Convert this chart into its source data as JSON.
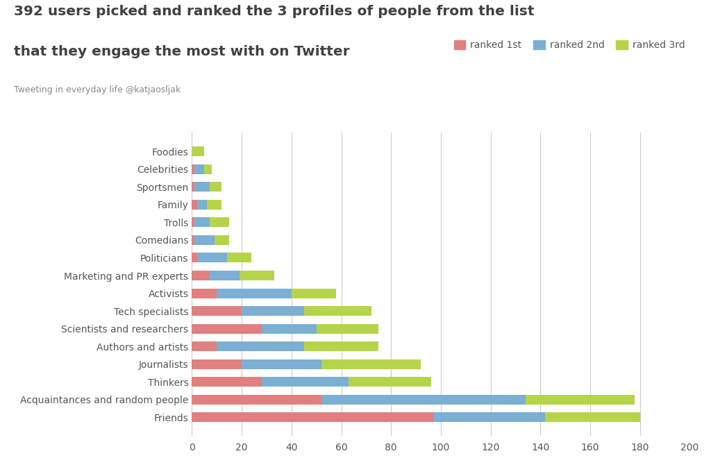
{
  "categories": [
    "Friends",
    "Acquaintances and random people",
    "Thinkers",
    "Journalists",
    "Authors and artists",
    "Scientists and researchers",
    "Tech specialists",
    "Activists",
    "Marketing and PR experts",
    "Politicians",
    "Comedians",
    "Trolls",
    "Family",
    "Sportsmen",
    "Celebrities",
    "Foodies"
  ],
  "ranked_1st": [
    97,
    52,
    28,
    20,
    10,
    28,
    20,
    10,
    7,
    2,
    1,
    1,
    2,
    1,
    1,
    0
  ],
  "ranked_2nd": [
    45,
    82,
    35,
    32,
    35,
    22,
    25,
    30,
    12,
    12,
    8,
    6,
    4,
    6,
    4,
    0
  ],
  "ranked_3rd": [
    38,
    44,
    33,
    40,
    30,
    25,
    27,
    18,
    14,
    10,
    6,
    8,
    6,
    5,
    3,
    5
  ],
  "color_1st": "#e08080",
  "color_2nd": "#7bafd4",
  "color_3rd": "#b5d44a",
  "title_line1": "392 users picked and ranked the 3 profiles of people from the list",
  "title_line2": "that they engage the most with on Twitter",
  "subtitle": "Tweeting in everyday life @katjaosljak",
  "xlim": [
    0,
    200
  ],
  "xticks": [
    0,
    20,
    40,
    60,
    80,
    100,
    120,
    140,
    160,
    180,
    200
  ],
  "legend_labels": [
    "ranked 1st",
    "ranked 2nd",
    "ranked 3rd"
  ],
  "background_color": "#ffffff",
  "grid_color": "#cccccc"
}
